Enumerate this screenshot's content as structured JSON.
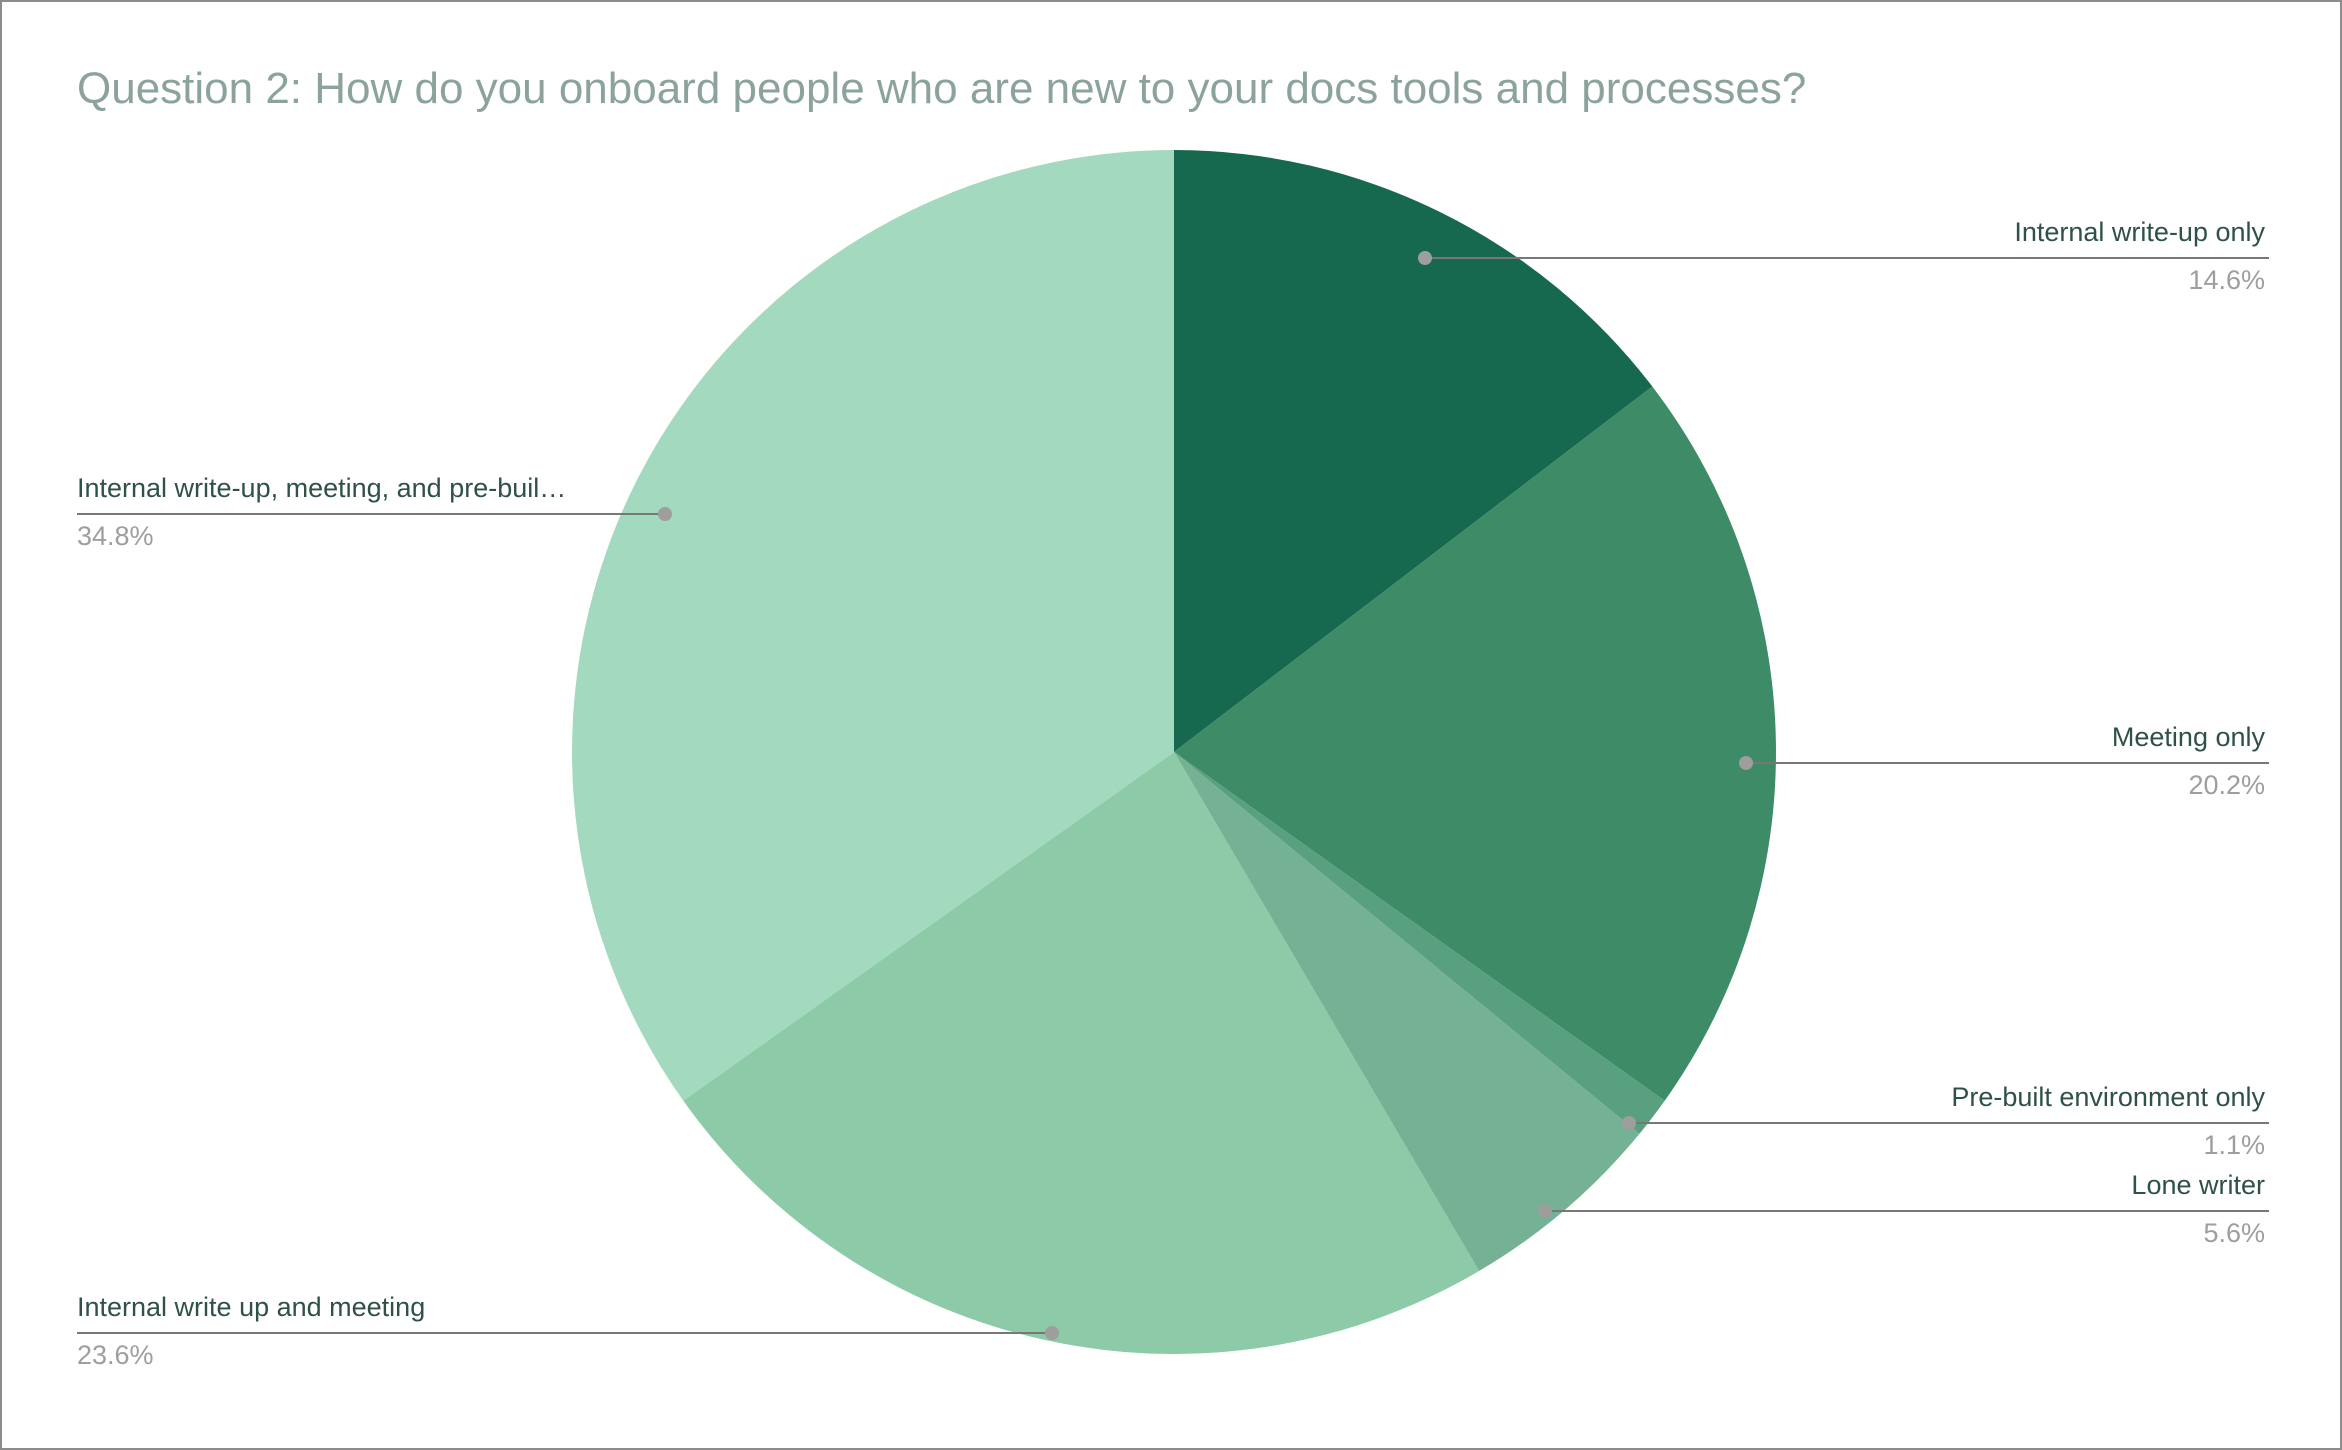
{
  "window": {
    "background": "#ffffff",
    "border_color": "#8c8c8c"
  },
  "title": "Question 2: How do you onboard people who are new to your docs tools and processes?",
  "chart_data": {
    "type": "pie",
    "title": "Question 2: How do you onboard people who are new to your docs tools and processes?",
    "legend_position": "callout-labels-left-right",
    "start_angle_deg": 0,
    "direction": "clockwise",
    "slices": [
      {
        "label": "Internal write-up only",
        "value": 14.6,
        "pct_label": "14.6%",
        "color": "#16694F"
      },
      {
        "label": "Meeting only",
        "value": 20.2,
        "pct_label": "20.2%",
        "color": "#3D8C67"
      },
      {
        "label": "Pre-built environment only",
        "value": 1.1,
        "pct_label": "1.1%",
        "color": "#59A081"
      },
      {
        "label": "Lone writer",
        "value": 5.6,
        "pct_label": "5.6%",
        "color": "#75B194"
      },
      {
        "label": "Internal write up and meeting",
        "value": 23.6,
        "pct_label": "23.6%",
        "color": "#8CCAA8"
      },
      {
        "label": "Internal write-up, meeting, and pre-buil…",
        "value": 34.8,
        "pct_label": "34.8%",
        "color": "#A3D9BE"
      }
    ],
    "colors": {
      "title_text": "#8BA39A",
      "label_text": "#2F5147",
      "pct_text": "#9E9E9E",
      "leader_line": "#777777",
      "dot": "#9E9E9E"
    }
  }
}
